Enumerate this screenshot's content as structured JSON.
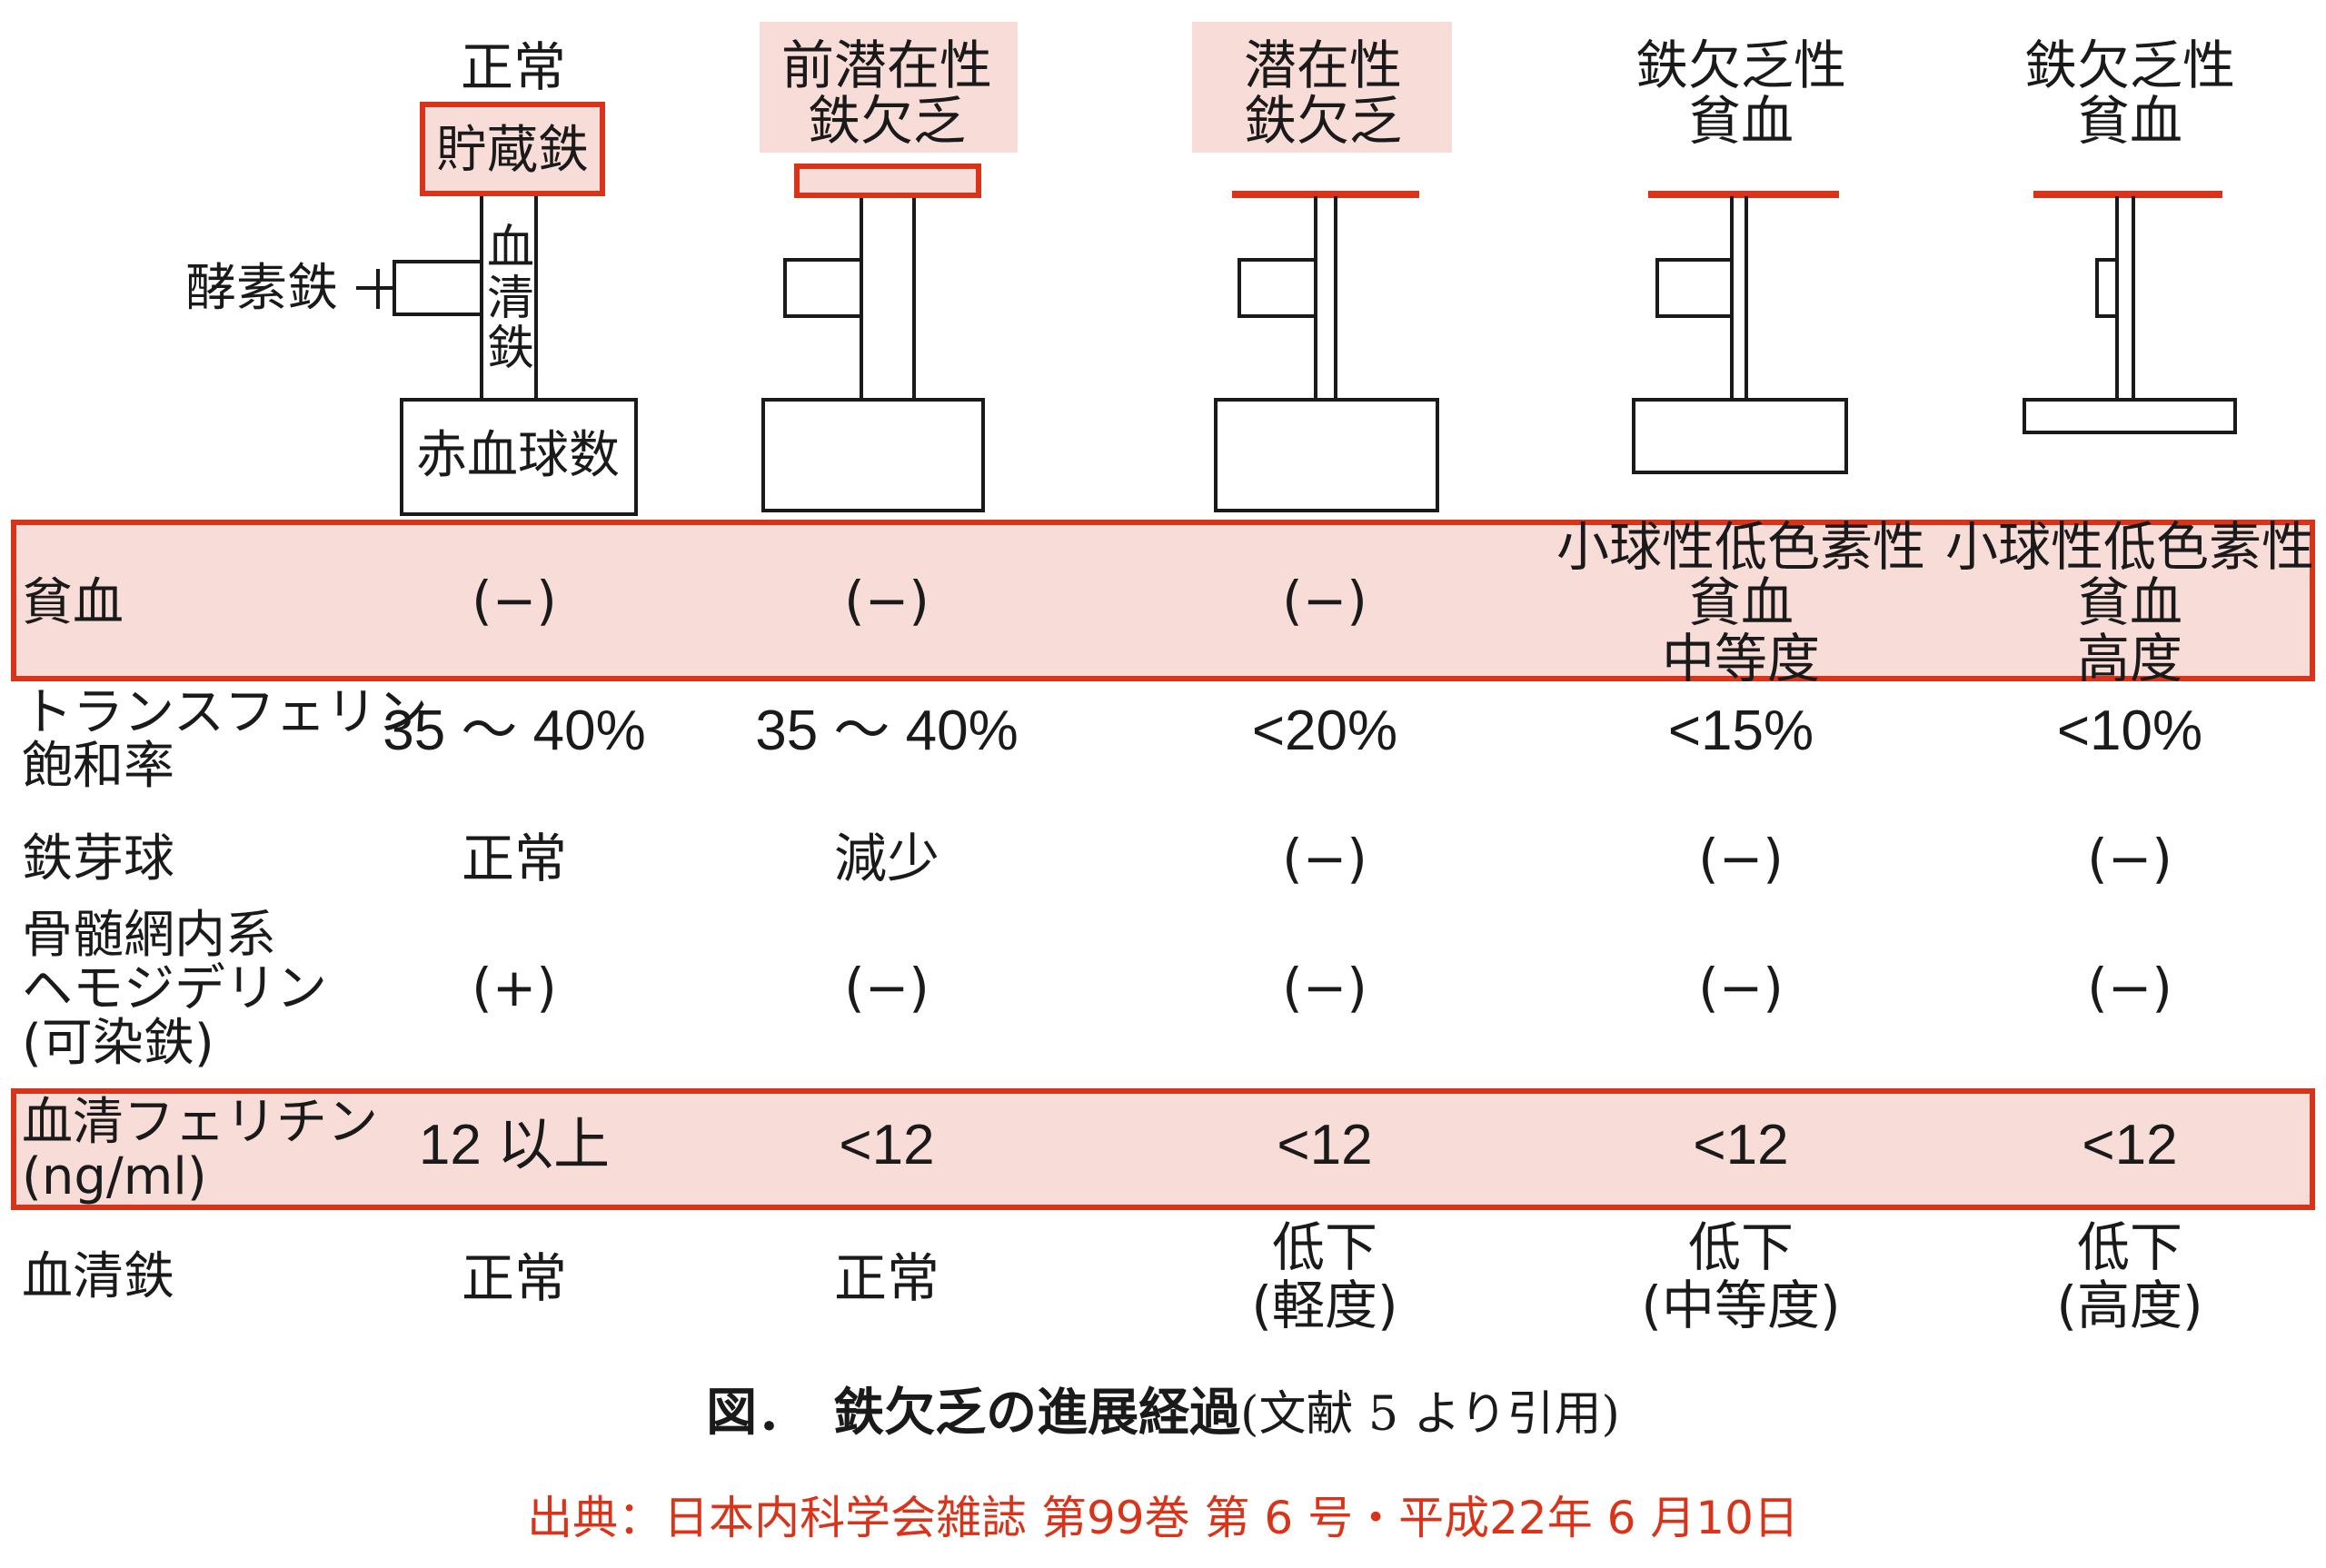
{
  "stages": [
    {
      "line1": "正常",
      "line2": ""
    },
    {
      "line1": "前潜在性",
      "line2": "鉄欠乏"
    },
    {
      "line1": "潜在性",
      "line2": "鉄欠乏"
    },
    {
      "line1": "鉄欠乏性",
      "line2": "貧血"
    },
    {
      "line1": "鉄欠乏性",
      "line2": "貧血"
    }
  ],
  "diagram_labels": {
    "storage_iron": "貯蔵鉄",
    "enzyme_iron": "酵素鉄",
    "serum_iron_v1": "血",
    "serum_iron_v2": "清",
    "serum_iron_v3": "鉄",
    "rbc_count": "赤血球数"
  },
  "rows": {
    "anemia": {
      "label": "貧血",
      "values": [
        "(−)",
        "(−)",
        "(−)"
      ],
      "stage4": [
        "小球性低色素性",
        "貧血",
        "中等度"
      ],
      "stage5": [
        "小球性低色素性",
        "貧血",
        "高度"
      ]
    },
    "transferrin": {
      "label1": "トランスフェリン",
      "label2": "飽和率",
      "values": [
        "35 ～ 40%",
        "35 ～ 40%",
        "<20%",
        "<15%",
        "<10%"
      ]
    },
    "sideroblast": {
      "label": "鉄芽球",
      "values": [
        "正常",
        "減少",
        "(−)",
        "(−)",
        "(−)"
      ]
    },
    "hemosiderin": {
      "label1": "骨髄網内系",
      "label2": "ヘモジデリン",
      "label3": "(可染鉄)",
      "values": [
        "(+)",
        "(−)",
        "(−)",
        "(−)",
        "(−)"
      ]
    },
    "ferritin": {
      "label1": "血清フェリチン",
      "label2": "(ng/ml)",
      "values": [
        "12 以上",
        "<12",
        "<12",
        "<12",
        "<12"
      ]
    },
    "serum_iron": {
      "label": "血清鉄",
      "values": [
        {
          "l1": "正常",
          "l2": ""
        },
        {
          "l1": "正常",
          "l2": ""
        },
        {
          "l1": "低下",
          "l2": "(軽度)"
        },
        {
          "l1": "低下",
          "l2": "(中等度)"
        },
        {
          "l1": "低下",
          "l2": "(高度)"
        }
      ]
    }
  },
  "caption": {
    "main": "図．　鉄欠乏の進展経過",
    "sub": "(文献 5 より引用)"
  },
  "source": "出典：日本内科学会雑誌 第99巻 第 6 号・平成22年 6 月10日",
  "colors": {
    "accent_red": "#d9331a",
    "pink_fill": "#f7dcd8",
    "ink": "#1a1a1a"
  }
}
